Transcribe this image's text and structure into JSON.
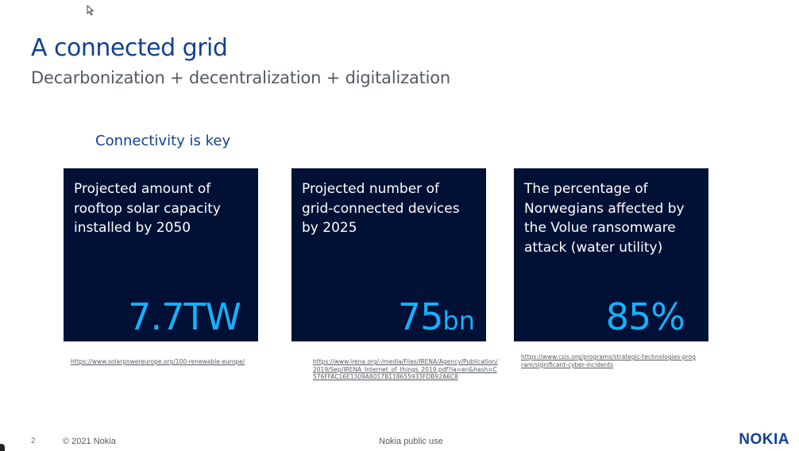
{
  "slide": {
    "title": "A connected grid",
    "subtitle": "Decarbonization + decentralization + digitalization",
    "section_heading": "Connectivity is key"
  },
  "cards": [
    {
      "description": "Projected amount of\nrooftop solar capacity\ninstalled by  2050",
      "value_number": "7.7TW",
      "value_unit": "",
      "source": "https://www.solarpowereurope.org/100-renewable-europe/"
    },
    {
      "description": "Projected number of\ngrid-connected devices\nby 2025",
      "value_number": "75",
      "value_unit": "bn",
      "source": "https://www.irena.org/-/media/Files/IRENA/Agency/Publication/2019/Sep/IRENA_Internet_of_things_2019.pdf?la=en&hash=C576FFAC16E1309A8017B118655933FDB92A6C8"
    },
    {
      "description": "The percentage of\nNorwegians affected by\nthe Volue ransomware\nattack (water utility)",
      "value_number": "85%",
      "value_unit": "",
      "source": "https://www.csis.org/programs/strategic-technologies-program/significant-cyber-incidents"
    }
  ],
  "footer": {
    "page_number": "2",
    "copyright": "© 2021 Nokia",
    "classification": "Nokia public use",
    "logo_text": "NOKIA"
  },
  "colors": {
    "brand_blue": "#124191",
    "card_background": "#001135",
    "value_accent": "#18b0ff",
    "subtitle_gray": "#555a60"
  },
  "icons": {
    "cursor": "mouse-pointer-icon"
  }
}
